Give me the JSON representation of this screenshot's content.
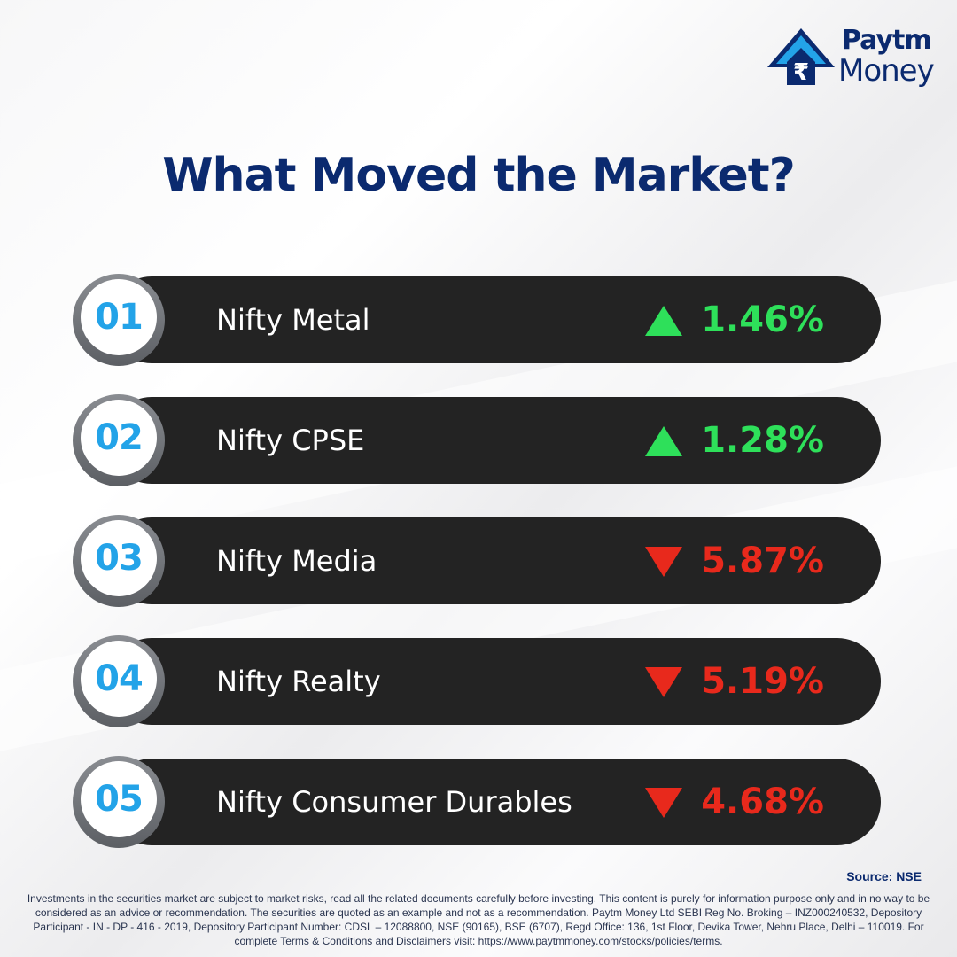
{
  "brand": {
    "top": "Paytm",
    "bottom": "Money",
    "symbol": "₹"
  },
  "title": "What Moved the Market?",
  "items": [
    {
      "number": "01",
      "name": "Nifty Metal",
      "direction": "up",
      "value": "1.46%"
    },
    {
      "number": "02",
      "name": "Nifty CPSE",
      "direction": "up",
      "value": "1.28%"
    },
    {
      "number": "03",
      "name": "Nifty Media",
      "direction": "down",
      "value": "5.87%"
    },
    {
      "number": "04",
      "name": "Nifty Realty",
      "direction": "down",
      "value": "5.19%"
    },
    {
      "number": "05",
      "name": "Nifty Consumer Durables",
      "direction": "down",
      "value": "4.68%"
    }
  ],
  "colors": {
    "up": "#2ee05a",
    "down": "#e8291c",
    "navy": "#0b2a6f",
    "badge_text": "#23a3e8"
  },
  "source": "Source: NSE",
  "disclaimer": "Investments in the securities market are subject to market risks, read all the related documents carefully before investing. This content is purely for information purpose only and in no way to be considered as an advice or recommendation. The securities are quoted as an example and not as a recommendation. Paytm Money Ltd SEBI Reg No. Broking – INZ000240532, Depository Participant - IN - DP - 416 - 2019, Depository Participant Number: CDSL – 12088800, NSE (90165), BSE (6707), Regd Office: 136, 1st Floor, Devika Tower, Nehru Place, Delhi – 110019. For complete Terms & Conditions and Disclaimers visit: https://www.paytmmoney.com/stocks/policies/terms."
}
